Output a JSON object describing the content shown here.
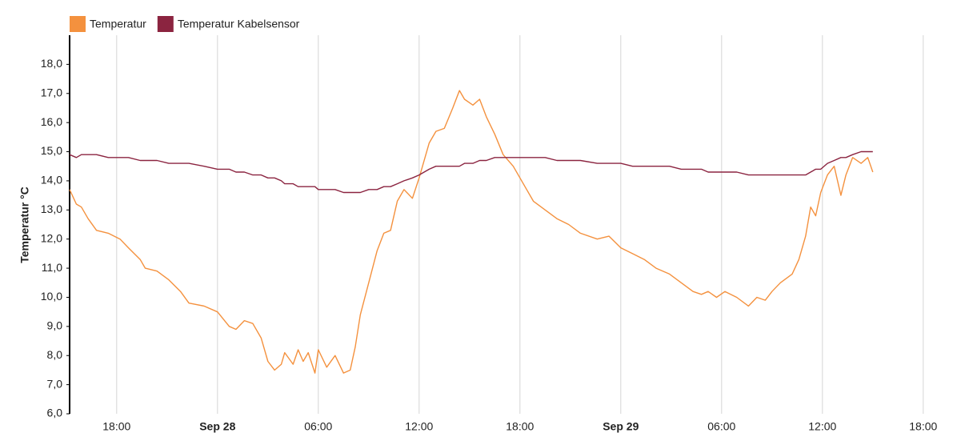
{
  "chart_data": {
    "type": "line",
    "y_label": "Temperatur °C",
    "legend": "top-left",
    "grid": "x",
    "xlim": [
      -8.8,
      44
    ],
    "xticks": [
      {
        "value": -6,
        "label": "18:00"
      },
      {
        "value": 0,
        "label": "Sep 28"
      },
      {
        "value": 6,
        "label": "06:00"
      },
      {
        "value": 12,
        "label": "12:00"
      },
      {
        "value": 18,
        "label": "18:00"
      },
      {
        "value": 24,
        "label": "Sep 29"
      },
      {
        "value": 30,
        "label": "06:00"
      },
      {
        "value": 36,
        "label": "12:00"
      },
      {
        "value": 42,
        "label": "18:00"
      }
    ],
    "ylim": [
      6,
      19
    ],
    "yticks": [
      {
        "value": 6,
        "label": "6,0"
      },
      {
        "value": 7,
        "label": "7,0"
      },
      {
        "value": 8,
        "label": "8,0"
      },
      {
        "value": 9,
        "label": "9,0"
      },
      {
        "value": 10,
        "label": "10,0"
      },
      {
        "value": 11,
        "label": "11,0"
      },
      {
        "value": 12,
        "label": "12,0"
      },
      {
        "value": 13,
        "label": "13,0"
      },
      {
        "value": 14,
        "label": "14,0"
      },
      {
        "value": 15,
        "label": "15,0"
      },
      {
        "value": 16,
        "label": "16,0"
      },
      {
        "value": 17,
        "label": "17,0"
      },
      {
        "value": 18,
        "label": "18,0"
      }
    ],
    "x": [
      -8.8,
      -8.4,
      -8.1,
      -7.7,
      -7.2,
      -6.5,
      -5.8,
      -5.3,
      -4.6,
      -4.3,
      -3.6,
      -2.9,
      -2.2,
      -1.7,
      -0.8,
      0,
      0.7,
      1.1,
      1.6,
      2.1,
      2.6,
      3.0,
      3.4,
      3.8,
      4.0,
      4.5,
      4.8,
      5.1,
      5.4,
      5.8,
      6.0,
      6.5,
      7.0,
      7.5,
      7.9,
      8.2,
      8.5,
      9.0,
      9.5,
      9.9,
      10.3,
      10.7,
      11.1,
      11.6,
      12.0,
      12.6,
      13.0,
      13.5,
      14.0,
      14.4,
      14.7,
      15.2,
      15.6,
      16.0,
      16.5,
      17.0,
      17.6,
      18.3,
      18.8,
      19.5,
      20.2,
      20.9,
      21.6,
      22.6,
      23.3,
      24.0,
      24.7,
      25.4,
      26.1,
      26.9,
      27.6,
      28.3,
      28.8,
      29.2,
      29.7,
      30.2,
      30.9,
      31.6,
      32.1,
      32.6,
      33.0,
      33.5,
      34.2,
      34.6,
      35.0,
      35.3,
      35.6,
      35.9,
      36.3,
      36.7,
      37.1,
      37.4,
      37.8,
      38.3,
      38.7,
      39.0
    ],
    "series": [
      {
        "name": "Temperatur",
        "color": "#f4913e",
        "values": [
          13.7,
          13.2,
          13.1,
          12.7,
          12.3,
          12.2,
          12.0,
          11.7,
          11.3,
          11.0,
          10.9,
          10.6,
          10.2,
          9.8,
          9.7,
          9.5,
          9.0,
          8.9,
          9.2,
          9.1,
          8.6,
          7.8,
          7.5,
          7.7,
          8.1,
          7.7,
          8.2,
          7.8,
          8.1,
          7.4,
          8.2,
          7.6,
          8.0,
          7.4,
          7.5,
          8.3,
          9.4,
          10.5,
          11.6,
          12.2,
          12.3,
          13.3,
          13.7,
          13.4,
          14.1,
          15.3,
          15.7,
          15.8,
          16.5,
          17.1,
          16.8,
          16.6,
          16.8,
          16.2,
          15.6,
          14.9,
          14.5,
          13.8,
          13.3,
          13.0,
          12.7,
          12.5,
          12.2,
          12.0,
          12.1,
          11.7,
          11.5,
          11.3,
          11.0,
          10.8,
          10.5,
          10.2,
          10.1,
          10.2,
          10.0,
          10.2,
          10.0,
          9.7,
          10.0,
          9.9,
          10.2,
          10.5,
          10.8,
          11.3,
          12.1,
          13.1,
          12.8,
          13.6,
          14.2,
          14.5,
          13.5,
          14.2,
          14.8,
          14.6,
          14.8,
          14.3
        ]
      },
      {
        "name": "Temperatur Kabelsensor",
        "color": "#8b2440",
        "values": [
          14.9,
          14.8,
          14.9,
          14.9,
          14.9,
          14.8,
          14.8,
          14.8,
          14.7,
          14.7,
          14.7,
          14.6,
          14.6,
          14.6,
          14.5,
          14.4,
          14.4,
          14.3,
          14.3,
          14.2,
          14.2,
          14.1,
          14.1,
          14.0,
          13.9,
          13.9,
          13.8,
          13.8,
          13.8,
          13.8,
          13.7,
          13.7,
          13.7,
          13.6,
          13.6,
          13.6,
          13.6,
          13.7,
          13.7,
          13.8,
          13.8,
          13.9,
          14.0,
          14.1,
          14.2,
          14.4,
          14.5,
          14.5,
          14.5,
          14.5,
          14.6,
          14.6,
          14.7,
          14.7,
          14.8,
          14.8,
          14.8,
          14.8,
          14.8,
          14.8,
          14.7,
          14.7,
          14.7,
          14.6,
          14.6,
          14.6,
          14.5,
          14.5,
          14.5,
          14.5,
          14.4,
          14.4,
          14.4,
          14.3,
          14.3,
          14.3,
          14.3,
          14.2,
          14.2,
          14.2,
          14.2,
          14.2,
          14.2,
          14.2,
          14.2,
          14.3,
          14.4,
          14.4,
          14.6,
          14.7,
          14.8,
          14.8,
          14.9,
          15.0,
          15.0,
          15.0
        ]
      }
    ]
  }
}
